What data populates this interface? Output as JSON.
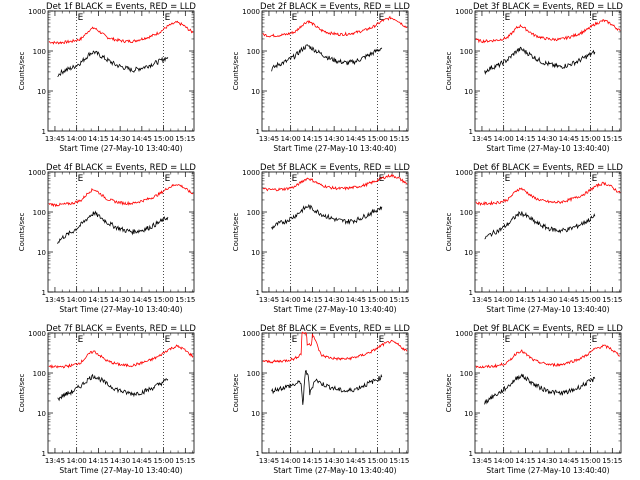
{
  "chart_data": [
    {
      "type": "line",
      "title": "Det 1f BLACK = Events, RED = LLD",
      "xlabel": "Start Time (27-May-10 13:40:40)",
      "ylabel": "Counts/sec",
      "ylim": [
        1,
        1000
      ],
      "yscale": "log",
      "yticks": [
        "1",
        "10",
        "100",
        "1000"
      ],
      "xticks": [
        "13:45",
        "14:00",
        "14:15",
        "14:30",
        "14:45",
        "15:00",
        "15:15"
      ],
      "xlim": [
        13.67,
        15.35
      ],
      "markers": {
        "x": [
          14.0,
          15.0
        ],
        "label": "E"
      },
      "series": [
        {
          "color": "#ff0000",
          "x": [
            13.68,
            13.75,
            13.85,
            13.95,
            14.05,
            14.15,
            14.2,
            14.25,
            14.35,
            14.45,
            14.55,
            14.65,
            14.75,
            14.85,
            14.95,
            15.05,
            15.15,
            15.22,
            15.3,
            15.34
          ],
          "values": [
            170,
            160,
            165,
            175,
            200,
            340,
            380,
            320,
            220,
            190,
            175,
            175,
            200,
            230,
            290,
            420,
            520,
            450,
            330,
            290
          ]
        },
        {
          "color": "#000000",
          "x": [
            13.78,
            13.85,
            13.95,
            14.05,
            14.15,
            14.2,
            14.28,
            14.35,
            14.45,
            14.55,
            14.65,
            14.75,
            14.85,
            14.95,
            15.05
          ],
          "values": [
            25,
            32,
            38,
            52,
            85,
            95,
            75,
            60,
            45,
            38,
            33,
            38,
            45,
            55,
            70
          ]
        }
      ]
    },
    {
      "type": "line",
      "title": "Det 2f BLACK = Events, RED = LLD",
      "xlabel": "Start Time (27-May-10 13:40:40)",
      "ylabel": "Counts/sec",
      "ylim": [
        1,
        1000
      ],
      "yscale": "log",
      "yticks": [
        "1",
        "10",
        "100",
        "1000"
      ],
      "xticks": [
        "13:45",
        "14:00",
        "14:15",
        "14:30",
        "14:45",
        "15:00",
        "15:15"
      ],
      "xlim": [
        13.67,
        15.35
      ],
      "markers": {
        "x": [
          14.0,
          15.0
        ],
        "label": "E"
      },
      "series": [
        {
          "color": "#ff0000",
          "x": [
            13.68,
            13.75,
            13.85,
            13.95,
            14.05,
            14.15,
            14.2,
            14.25,
            14.35,
            14.45,
            14.55,
            14.65,
            14.75,
            14.85,
            14.95,
            15.05,
            15.15,
            15.22,
            15.3,
            15.34
          ],
          "values": [
            260,
            240,
            245,
            260,
            300,
            480,
            560,
            480,
            330,
            280,
            260,
            265,
            290,
            330,
            400,
            560,
            680,
            600,
            440,
            380
          ]
        },
        {
          "color": "#000000",
          "x": [
            13.78,
            13.85,
            13.95,
            14.05,
            14.15,
            14.2,
            14.28,
            14.35,
            14.45,
            14.55,
            14.65,
            14.75,
            14.85,
            14.95,
            15.05
          ],
          "values": [
            35,
            45,
            55,
            75,
            120,
            135,
            105,
            85,
            65,
            55,
            50,
            55,
            70,
            90,
            120
          ]
        }
      ]
    },
    {
      "type": "line",
      "title": "Det 3f BLACK = Events, RED = LLD",
      "xlabel": "Start Time (27-May-10 13:40:40)",
      "ylabel": "Counts/sec",
      "ylim": [
        1,
        1000
      ],
      "yscale": "log",
      "yticks": [
        "1",
        "10",
        "100",
        "1000"
      ],
      "xticks": [
        "13:45",
        "14:00",
        "14:15",
        "14:30",
        "14:45",
        "15:00",
        "15:15"
      ],
      "xlim": [
        13.67,
        15.35
      ],
      "markers": {
        "x": [
          14.0,
          15.0
        ],
        "label": "E"
      },
      "series": [
        {
          "color": "#ff0000",
          "x": [
            13.68,
            13.75,
            13.85,
            13.95,
            14.05,
            14.15,
            14.2,
            14.25,
            14.35,
            14.45,
            14.55,
            14.65,
            14.75,
            14.85,
            14.95,
            15.05,
            15.15,
            15.22,
            15.3,
            15.34
          ],
          "values": [
            190,
            175,
            180,
            190,
            220,
            380,
            430,
            360,
            250,
            210,
            195,
            195,
            220,
            260,
            330,
            470,
            580,
            500,
            370,
            320
          ]
        },
        {
          "color": "#000000",
          "x": [
            13.78,
            13.85,
            13.95,
            14.05,
            14.15,
            14.2,
            14.28,
            14.35,
            14.45,
            14.55,
            14.65,
            14.75,
            14.85,
            14.95,
            15.05
          ],
          "values": [
            30,
            38,
            45,
            62,
            100,
            112,
            88,
            70,
            52,
            45,
            40,
            45,
            55,
            72,
            95
          ]
        }
      ]
    },
    {
      "type": "line",
      "title": "Det 4f BLACK = Events, RED = LLD",
      "xlabel": "Start Time (27-May-10 13:40:40)",
      "ylabel": "Counts/sec",
      "ylim": [
        1,
        1000
      ],
      "yscale": "log",
      "yticks": [
        "1",
        "10",
        "100",
        "1000"
      ],
      "xticks": [
        "13:45",
        "14:00",
        "14:15",
        "14:30",
        "14:45",
        "15:00",
        "15:15"
      ],
      "xlim": [
        13.67,
        15.35
      ],
      "markers": {
        "x": [
          14.0,
          15.0
        ],
        "label": "E"
      },
      "series": [
        {
          "color": "#ff0000",
          "x": [
            13.68,
            13.75,
            13.85,
            13.95,
            14.05,
            14.15,
            14.2,
            14.25,
            14.35,
            14.45,
            14.55,
            14.65,
            14.75,
            14.85,
            14.95,
            15.05,
            15.15,
            15.22,
            15.3,
            15.34
          ],
          "values": [
            160,
            150,
            155,
            165,
            195,
            330,
            370,
            310,
            210,
            180,
            165,
            165,
            190,
            220,
            280,
            400,
            500,
            430,
            320,
            280
          ]
        },
        {
          "color": "#000000",
          "x": [
            13.78,
            13.85,
            13.95,
            14.05,
            14.15,
            14.2,
            14.28,
            14.35,
            14.45,
            14.55,
            14.65,
            14.75,
            14.85,
            14.95,
            15.05
          ],
          "values": [
            18,
            24,
            32,
            48,
            80,
            95,
            72,
            55,
            42,
            35,
            32,
            35,
            42,
            55,
            75
          ]
        }
      ]
    },
    {
      "type": "line",
      "title": "Det 5f BLACK = Events, RED = LLD",
      "xlabel": "Start Time (27-May-10 13:40:40)",
      "ylabel": "Counts/sec",
      "ylim": [
        1,
        1000
      ],
      "yscale": "log",
      "yticks": [
        "1",
        "10",
        "100",
        "1000"
      ],
      "xticks": [
        "13:45",
        "14:00",
        "14:15",
        "14:30",
        "14:45",
        "15:00",
        "15:15"
      ],
      "xlim": [
        13.67,
        15.35
      ],
      "markers": {
        "x": [
          14.0,
          15.0
        ],
        "label": "E"
      },
      "series": [
        {
          "color": "#ff0000",
          "x": [
            13.68,
            13.75,
            13.85,
            13.95,
            14.05,
            14.15,
            14.2,
            14.25,
            14.35,
            14.45,
            14.55,
            14.65,
            14.75,
            14.85,
            14.95,
            15.05,
            15.15,
            15.22,
            15.3,
            15.34
          ],
          "values": [
            380,
            360,
            365,
            380,
            430,
            620,
            700,
            620,
            470,
            410,
            385,
            390,
            420,
            470,
            560,
            700,
            820,
            750,
            580,
            500
          ]
        },
        {
          "color": "#000000",
          "x": [
            13.78,
            13.85,
            13.95,
            14.05,
            14.15,
            14.2,
            14.28,
            14.35,
            14.45,
            14.55,
            14.65,
            14.75,
            14.85,
            14.95,
            15.05
          ],
          "values": [
            40,
            50,
            60,
            80,
            120,
            140,
            110,
            90,
            72,
            62,
            58,
            62,
            78,
            100,
            135
          ]
        }
      ]
    },
    {
      "type": "line",
      "title": "Det 6f BLACK = Events, RED = LLD",
      "xlabel": "Start Time (27-May-10 13:40:40)",
      "ylabel": "Counts/sec",
      "ylim": [
        1,
        1000
      ],
      "yscale": "log",
      "yticks": [
        "1",
        "10",
        "100",
        "1000"
      ],
      "xticks": [
        "13:45",
        "14:00",
        "14:15",
        "14:30",
        "14:45",
        "15:00",
        "15:15"
      ],
      "xlim": [
        13.67,
        15.35
      ],
      "markers": {
        "x": [
          14.0,
          15.0
        ],
        "label": "E"
      },
      "series": [
        {
          "color": "#ff0000",
          "x": [
            13.68,
            13.75,
            13.85,
            13.95,
            14.05,
            14.15,
            14.2,
            14.25,
            14.35,
            14.45,
            14.55,
            14.65,
            14.75,
            14.85,
            14.95,
            15.05,
            15.15,
            15.22,
            15.3,
            15.34
          ],
          "values": [
            170,
            160,
            165,
            175,
            205,
            350,
            390,
            330,
            225,
            190,
            175,
            175,
            200,
            235,
            300,
            430,
            530,
            460,
            340,
            300
          ]
        },
        {
          "color": "#000000",
          "x": [
            13.78,
            13.85,
            13.95,
            14.05,
            14.15,
            14.2,
            14.28,
            14.35,
            14.45,
            14.55,
            14.65,
            14.75,
            14.85,
            14.95,
            15.05
          ],
          "values": [
            22,
            28,
            35,
            50,
            82,
            95,
            75,
            58,
            44,
            37,
            34,
            37,
            45,
            58,
            78
          ]
        }
      ]
    },
    {
      "type": "line",
      "title": "Det 7f BLACK = Events, RED = LLD",
      "xlabel": "Start Time (27-May-10 13:40:40)",
      "ylabel": "Counts/sec",
      "ylim": [
        1,
        1000
      ],
      "yscale": "log",
      "yticks": [
        "1",
        "10",
        "100",
        "1000"
      ],
      "xticks": [
        "13:45",
        "14:00",
        "14:15",
        "14:30",
        "14:45",
        "15:00",
        "15:15"
      ],
      "xlim": [
        13.67,
        15.35
      ],
      "markers": {
        "x": [
          14.0,
          15.0
        ],
        "label": "E"
      },
      "series": [
        {
          "color": "#ff0000",
          "x": [
            13.68,
            13.75,
            13.85,
            13.95,
            14.05,
            14.15,
            14.2,
            14.25,
            14.35,
            14.45,
            14.55,
            14.65,
            14.75,
            14.85,
            14.95,
            15.05,
            15.15,
            15.22,
            15.3,
            15.34
          ],
          "values": [
            150,
            140,
            145,
            155,
            185,
            310,
            350,
            290,
            200,
            170,
            155,
            155,
            180,
            210,
            265,
            380,
            470,
            410,
            300,
            260
          ]
        },
        {
          "color": "#000000",
          "x": [
            13.78,
            13.85,
            13.95,
            14.05,
            14.15,
            14.2,
            14.28,
            14.35,
            14.45,
            14.55,
            14.65,
            14.75,
            14.85,
            14.95,
            15.05
          ],
          "values": [
            22,
            28,
            34,
            48,
            75,
            85,
            68,
            52,
            40,
            33,
            30,
            33,
            40,
            52,
            70
          ]
        }
      ]
    },
    {
      "type": "line",
      "title": "Det 8f BLACK = Events, RED = LLD",
      "xlabel": "Start Time (27-May-10 13:40:40)",
      "ylabel": "Counts/sec",
      "ylim": [
        1,
        1000
      ],
      "yscale": "log",
      "yticks": [
        "1",
        "10",
        "100",
        "1000"
      ],
      "xticks": [
        "13:45",
        "14:00",
        "14:15",
        "14:30",
        "14:45",
        "15:00",
        "15:15"
      ],
      "xlim": [
        13.67,
        15.35
      ],
      "markers": {
        "x": [
          14.0,
          15.0
        ],
        "label": "E"
      },
      "series": [
        {
          "color": "#ff0000",
          "x": [
            13.68,
            13.75,
            13.85,
            13.95,
            14.05,
            14.12,
            14.13,
            14.18,
            14.19,
            14.24,
            14.25,
            14.35,
            14.45,
            14.55,
            14.65,
            14.75,
            14.85,
            14.95,
            15.05,
            15.15,
            15.22,
            15.3,
            15.34
          ],
          "values": [
            200,
            190,
            195,
            205,
            230,
            300,
            1000,
            1000,
            520,
            520,
            1000,
            280,
            240,
            225,
            225,
            250,
            290,
            360,
            500,
            620,
            540,
            400,
            350
          ]
        },
        {
          "color": "#000000",
          "x": [
            13.78,
            13.85,
            13.95,
            14.05,
            14.12,
            14.14,
            14.17,
            14.2,
            14.22,
            14.28,
            14.35,
            14.45,
            14.55,
            14.65,
            14.75,
            14.85,
            14.95,
            15.05
          ],
          "values": [
            35,
            40,
            45,
            52,
            60,
            15,
            110,
            95,
            30,
            70,
            55,
            45,
            38,
            35,
            40,
            50,
            62,
            80
          ]
        }
      ]
    },
    {
      "type": "line",
      "title": "Det 9f BLACK = Events, RED = LLD",
      "xlabel": "Start Time (27-May-10 13:40:40)",
      "ylabel": "Counts/sec",
      "ylim": [
        1,
        1000
      ],
      "yscale": "log",
      "yticks": [
        "1",
        "10",
        "100",
        "1000"
      ],
      "xticks": [
        "13:45",
        "14:00",
        "14:15",
        "14:30",
        "14:45",
        "15:00",
        "15:15"
      ],
      "xlim": [
        13.67,
        15.35
      ],
      "markers": {
        "x": [
          14.0,
          15.0
        ],
        "label": "E"
      },
      "series": [
        {
          "color": "#ff0000",
          "x": [
            13.68,
            13.75,
            13.85,
            13.95,
            14.05,
            14.15,
            14.2,
            14.25,
            14.35,
            14.45,
            14.55,
            14.65,
            14.75,
            14.85,
            14.95,
            15.05,
            15.15,
            15.22,
            15.3,
            15.34
          ],
          "values": [
            150,
            140,
            145,
            155,
            185,
            320,
            360,
            300,
            205,
            175,
            160,
            160,
            185,
            215,
            275,
            400,
            480,
            420,
            310,
            270
          ]
        },
        {
          "color": "#000000",
          "x": [
            13.78,
            13.85,
            13.95,
            14.05,
            14.15,
            14.2,
            14.28,
            14.35,
            14.45,
            14.55,
            14.65,
            14.75,
            14.85,
            14.95,
            15.05
          ],
          "values": [
            18,
            24,
            32,
            46,
            75,
            88,
            68,
            52,
            40,
            34,
            31,
            34,
            42,
            55,
            72
          ]
        }
      ]
    }
  ]
}
